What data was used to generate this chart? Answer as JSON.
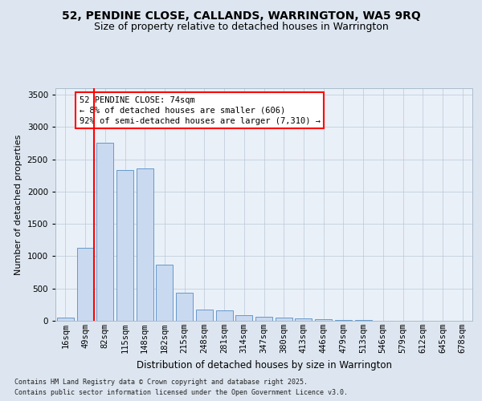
{
  "title1": "52, PENDINE CLOSE, CALLANDS, WARRINGTON, WA5 9RQ",
  "title2": "Size of property relative to detached houses in Warrington",
  "xlabel": "Distribution of detached houses by size in Warrington",
  "ylabel": "Number of detached properties",
  "categories": [
    "16sqm",
    "49sqm",
    "82sqm",
    "115sqm",
    "148sqm",
    "182sqm",
    "215sqm",
    "248sqm",
    "281sqm",
    "314sqm",
    "347sqm",
    "380sqm",
    "413sqm",
    "446sqm",
    "479sqm",
    "513sqm",
    "546sqm",
    "579sqm",
    "612sqm",
    "645sqm",
    "678sqm"
  ],
  "values": [
    50,
    1130,
    2760,
    2330,
    2360,
    870,
    440,
    170,
    160,
    90,
    65,
    50,
    40,
    30,
    15,
    10,
    5,
    3,
    2,
    1,
    1
  ],
  "bar_color": "#c9d9f0",
  "bar_edge_color": "#6699cc",
  "redline_index": 1,
  "annotation_text": "52 PENDINE CLOSE: 74sqm\n← 8% of detached houses are smaller (606)\n92% of semi-detached houses are larger (7,310) →",
  "annotation_box_color": "white",
  "annotation_box_edge_color": "red",
  "ylim": [
    0,
    3600
  ],
  "yticks": [
    0,
    500,
    1000,
    1500,
    2000,
    2500,
    3000,
    3500
  ],
  "footer1": "Contains HM Land Registry data © Crown copyright and database right 2025.",
  "footer2": "Contains public sector information licensed under the Open Government Licence v3.0.",
  "bg_color": "#dde6f0",
  "plot_bg_color": "#eaf0f8",
  "title1_fontsize": 10,
  "title2_fontsize": 9,
  "xlabel_fontsize": 8.5,
  "ylabel_fontsize": 8,
  "tick_fontsize": 7.5,
  "annotation_fontsize": 7.5,
  "footer_fontsize": 6
}
